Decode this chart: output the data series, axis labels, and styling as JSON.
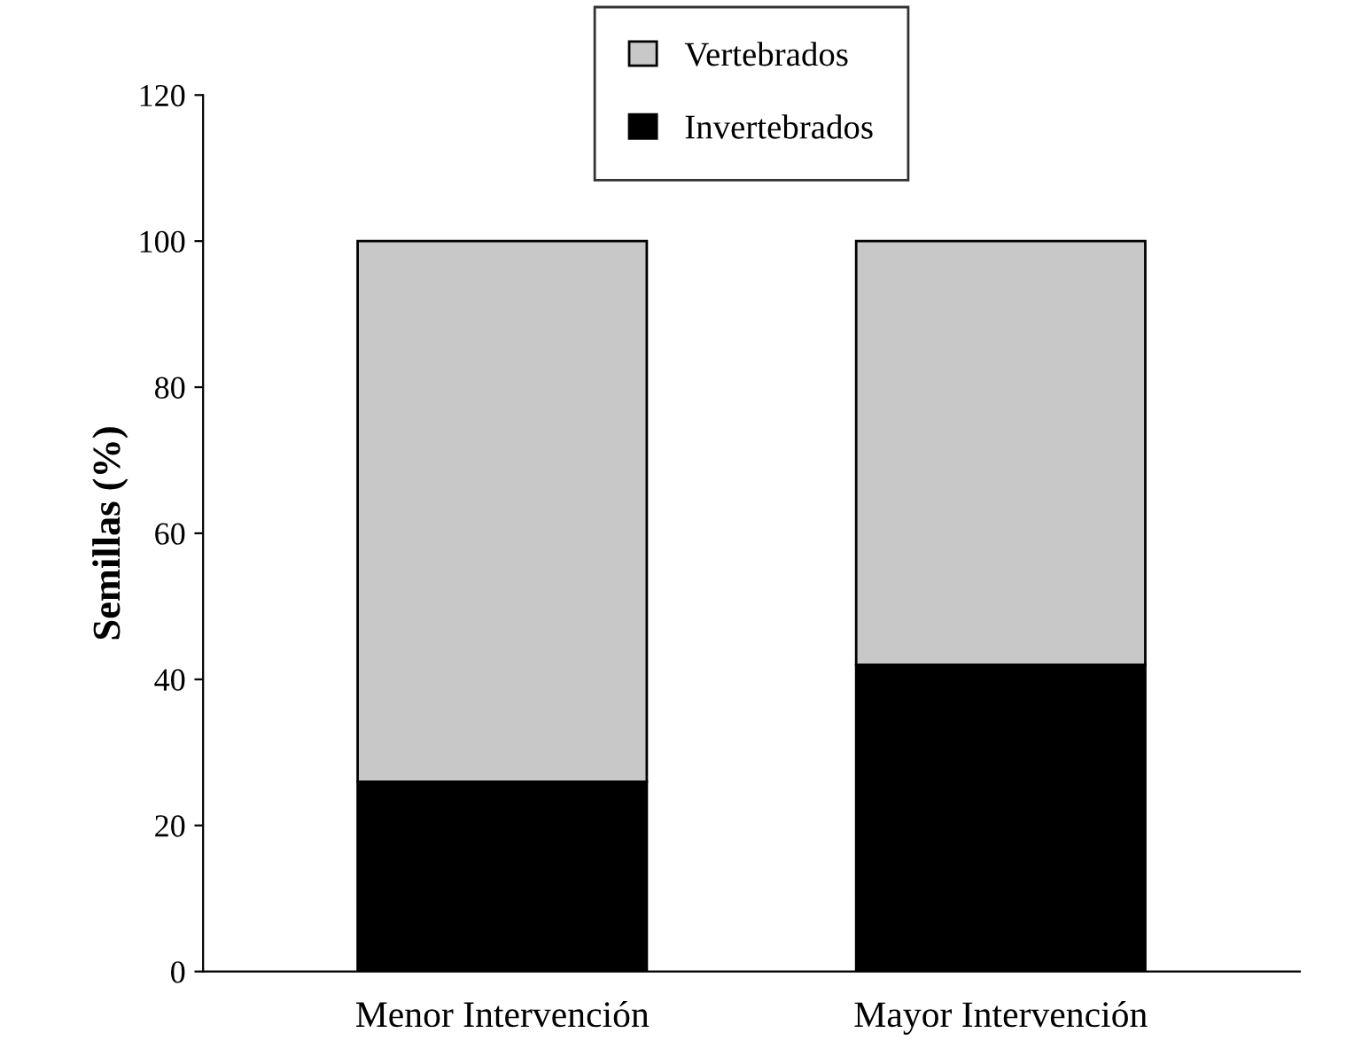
{
  "chart_data": {
    "type": "bar",
    "stacked": true,
    "ylabel": "Semillas (%)",
    "categories": [
      "Menor Intervención",
      "Mayor Intervención"
    ],
    "series": [
      {
        "name": "Invertebrados",
        "color": "#000000",
        "values": [
          26,
          42
        ]
      },
      {
        "name": "Vertebrados",
        "color": "#c8c8c8",
        "values": [
          74,
          58
        ]
      }
    ],
    "ylim": [
      0,
      120
    ],
    "yticks": [
      0,
      20,
      40,
      60,
      80,
      100,
      120
    ],
    "grid": false,
    "legend": "top"
  }
}
